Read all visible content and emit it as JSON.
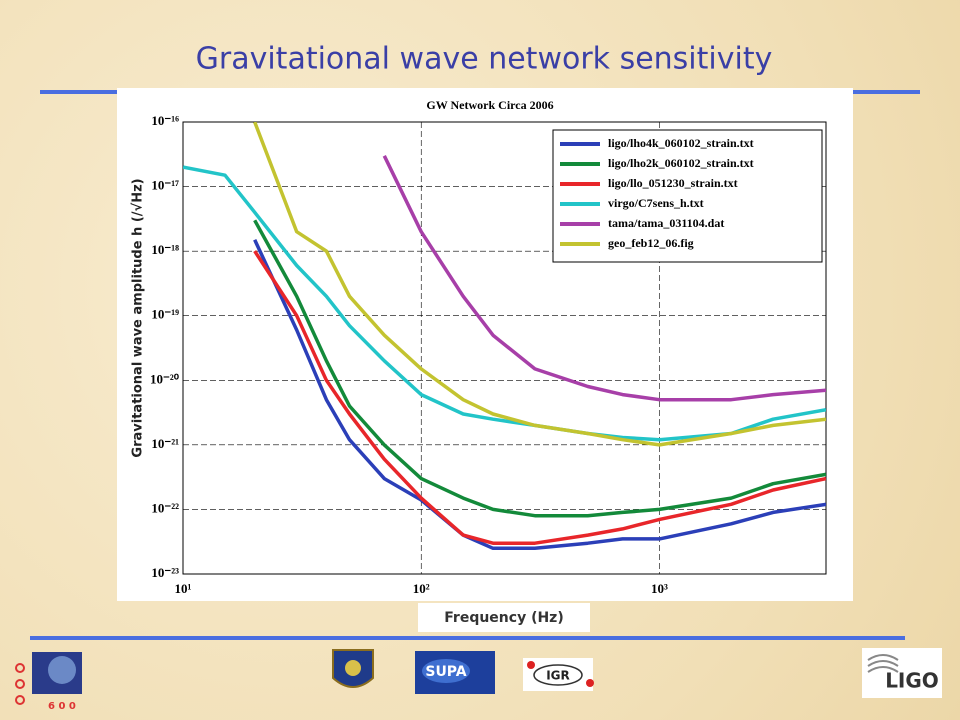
{
  "slide": {
    "title": "Gravitational wave network sensitivity",
    "logos": {
      "geo": "6 0 0",
      "supa": "SUPA",
      "igr": "IGR",
      "ligo": "LIGO"
    }
  },
  "chart_data": {
    "type": "line",
    "title": "GW Network Circa 2006",
    "xlabel": "Frequency (Hz)",
    "ylabel": "Gravitational wave amplitude h (/√Hz)",
    "xscale": "log",
    "yscale": "log",
    "grid": true,
    "legend": "upper right",
    "xlim": [
      10,
      5000
    ],
    "ylim": [
      1e-23,
      1e-16
    ],
    "xticks": [
      {
        "value": 10,
        "label": "10¹"
      },
      {
        "value": 100,
        "label": "10²"
      },
      {
        "value": 1000,
        "label": "10³"
      }
    ],
    "yticks": [
      {
        "value": 1e-16,
        "label": "10⁻¹⁶"
      },
      {
        "value": 1e-17,
        "label": "10⁻¹⁷"
      },
      {
        "value": 1e-18,
        "label": "10⁻¹⁸"
      },
      {
        "value": 1e-19,
        "label": "10⁻¹⁹"
      },
      {
        "value": 1e-20,
        "label": "10⁻²⁰"
      },
      {
        "value": 1e-21,
        "label": "10⁻²¹"
      },
      {
        "value": 1e-22,
        "label": "10⁻²²"
      },
      {
        "value": 1e-23,
        "label": "10⁻²³"
      }
    ],
    "x": [
      10,
      15,
      20,
      30,
      40,
      50,
      70,
      100,
      150,
      200,
      300,
      500,
      700,
      1000,
      2000,
      3000,
      5000
    ],
    "series": [
      {
        "name": "ligo/lho4k_060102_strain.txt",
        "color": "#2b3fb8",
        "values": [
          null,
          null,
          1.5e-18,
          6e-20,
          5e-21,
          1.2e-21,
          3e-22,
          1.4e-22,
          4e-23,
          2.5e-23,
          2.5e-23,
          3e-23,
          3.5e-23,
          3.5e-23,
          6e-23,
          9e-23,
          1.2e-22
        ]
      },
      {
        "name": "ligo/lho2k_060102_strain.txt",
        "color": "#138a3a",
        "values": [
          null,
          null,
          3e-18,
          2e-19,
          2e-20,
          4e-21,
          1e-21,
          3e-22,
          1.5e-22,
          1e-22,
          8e-23,
          8e-23,
          9e-23,
          1e-22,
          1.5e-22,
          2.5e-22,
          3.5e-22
        ]
      },
      {
        "name": "ligo/llo_051230_strain.txt",
        "color": "#e8262a",
        "values": [
          null,
          null,
          1e-18,
          1e-19,
          1e-20,
          3e-21,
          6e-22,
          1.5e-22,
          4e-23,
          3e-23,
          3e-23,
          4e-23,
          5e-23,
          7e-23,
          1.2e-22,
          2e-22,
          3e-22
        ]
      },
      {
        "name": "virgo/C7sens_h.txt",
        "color": "#22c4c8",
        "values": [
          2e-17,
          1.5e-17,
          4e-18,
          6e-19,
          2e-19,
          7e-20,
          2e-20,
          6e-21,
          3e-21,
          2.5e-21,
          2e-21,
          1.5e-21,
          1.3e-21,
          1.2e-21,
          1.5e-21,
          2.5e-21,
          3.5e-21
        ]
      },
      {
        "name": "tama/tama_031104.dat",
        "color": "#a73fa8",
        "values": [
          null,
          null,
          null,
          null,
          null,
          null,
          3e-17,
          2e-18,
          2e-19,
          5e-20,
          1.5e-20,
          8e-21,
          6e-21,
          5e-21,
          5e-21,
          6e-21,
          7e-21
        ]
      },
      {
        "name": "geo_feb12_06.fig",
        "color": "#c3c330",
        "values": [
          null,
          null,
          1e-16,
          2e-18,
          1e-18,
          2e-19,
          5e-20,
          1.5e-20,
          5e-21,
          3e-21,
          2e-21,
          1.5e-21,
          1.2e-21,
          1e-21,
          1.5e-21,
          2e-21,
          2.5e-21
        ]
      }
    ]
  }
}
